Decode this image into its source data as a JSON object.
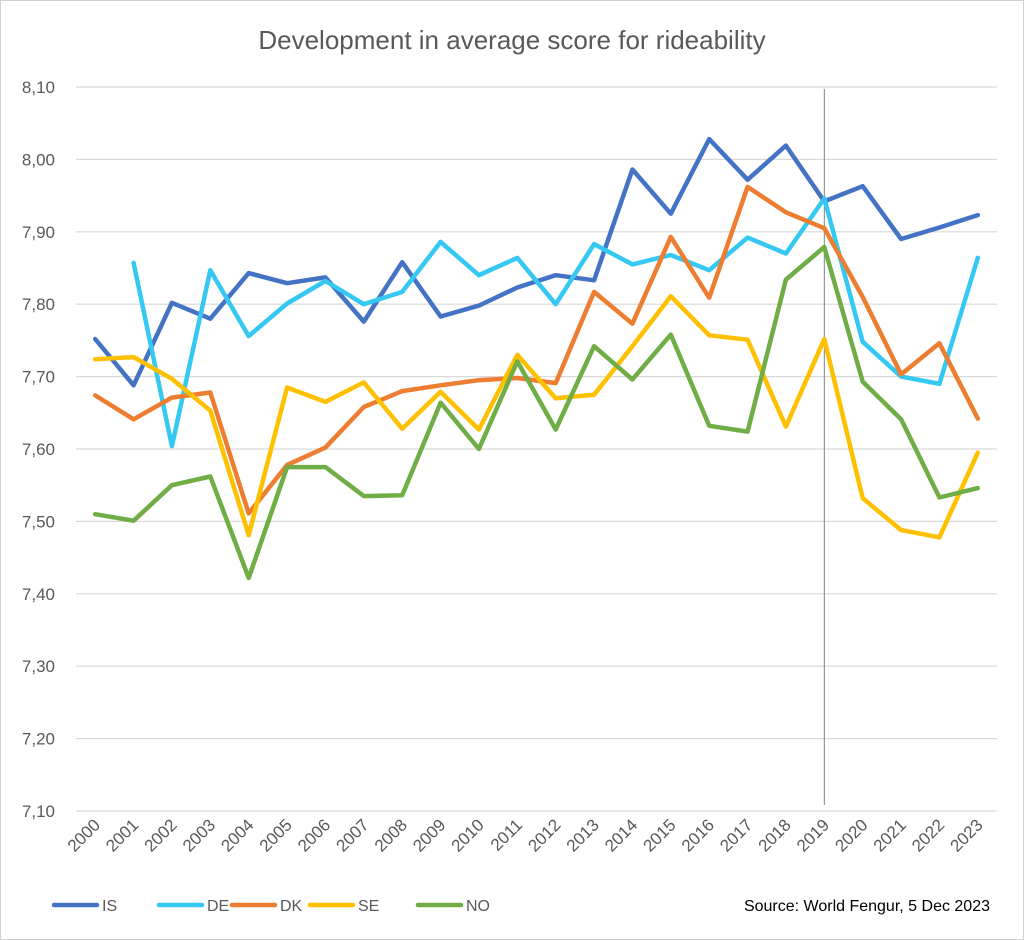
{
  "chart_data": {
    "type": "line",
    "title": "Development in average score for rideability",
    "source": "Source: World Fengur, 5 Dec 2023",
    "ylim": [
      7.1,
      8.1
    ],
    "y_ticks": [
      "7,10",
      "7,20",
      "7,30",
      "7,40",
      "7,50",
      "7,60",
      "7,70",
      "7,80",
      "7,90",
      "8,00",
      "8,10"
    ],
    "y_tick_values": [
      7.1,
      7.2,
      7.3,
      7.4,
      7.5,
      7.6,
      7.7,
      7.8,
      7.9,
      8.0,
      8.1
    ],
    "x": [
      "2000",
      "2001",
      "2002",
      "2003",
      "2004",
      "2005",
      "2006",
      "2007",
      "2008",
      "2009",
      "2010",
      "2011",
      "2012",
      "2013",
      "2014",
      "2015",
      "2016",
      "2017",
      "2018",
      "2019",
      "2020",
      "2021",
      "2022",
      "2023"
    ],
    "marker_line_x": "2019",
    "grid": true,
    "legend_position": "bottom-left",
    "series": [
      {
        "name": "IS",
        "color": "#4472c4",
        "values": [
          7.752,
          7.688,
          7.802,
          7.78,
          7.843,
          7.829,
          7.837,
          7.776,
          7.858,
          7.783,
          7.798,
          7.823,
          7.84,
          7.833,
          7.986,
          7.925,
          8.028,
          7.972,
          8.019,
          7.942,
          7.963,
          7.89,
          7.906,
          7.923
        ]
      },
      {
        "name": "DE",
        "color": "#34c8f2",
        "values": [
          null,
          7.857,
          7.604,
          7.847,
          7.756,
          7.801,
          7.832,
          7.8,
          7.817,
          7.886,
          7.84,
          7.864,
          7.8,
          7.883,
          7.855,
          7.868,
          7.847,
          7.892,
          7.87,
          7.946,
          7.748,
          7.7,
          7.69,
          7.864
        ]
      },
      {
        "name": "DK",
        "color": "#ed7d31",
        "values": [
          7.674,
          7.641,
          7.671,
          7.678,
          7.511,
          7.578,
          7.602,
          7.658,
          7.68,
          7.688,
          7.695,
          7.698,
          7.691,
          7.817,
          7.773,
          7.893,
          7.809,
          7.962,
          7.927,
          7.905,
          7.81,
          7.703,
          7.746,
          7.642
        ]
      },
      {
        "name": "SE",
        "color": "#ffc000",
        "values": [
          7.724,
          7.727,
          7.697,
          7.653,
          7.481,
          7.685,
          7.665,
          7.692,
          7.628,
          7.679,
          7.627,
          7.73,
          7.67,
          7.675,
          7.742,
          7.811,
          7.757,
          7.751,
          7.631,
          7.752,
          7.532,
          7.488,
          7.478,
          7.595
        ]
      },
      {
        "name": "NO",
        "color": "#70ad47",
        "values": [
          7.51,
          7.501,
          7.55,
          7.562,
          7.422,
          7.575,
          7.575,
          7.535,
          7.536,
          7.664,
          7.6,
          7.721,
          7.627,
          7.742,
          7.696,
          7.758,
          7.632,
          7.624,
          7.834,
          7.879,
          7.693,
          7.641,
          7.533,
          7.546
        ]
      }
    ]
  }
}
